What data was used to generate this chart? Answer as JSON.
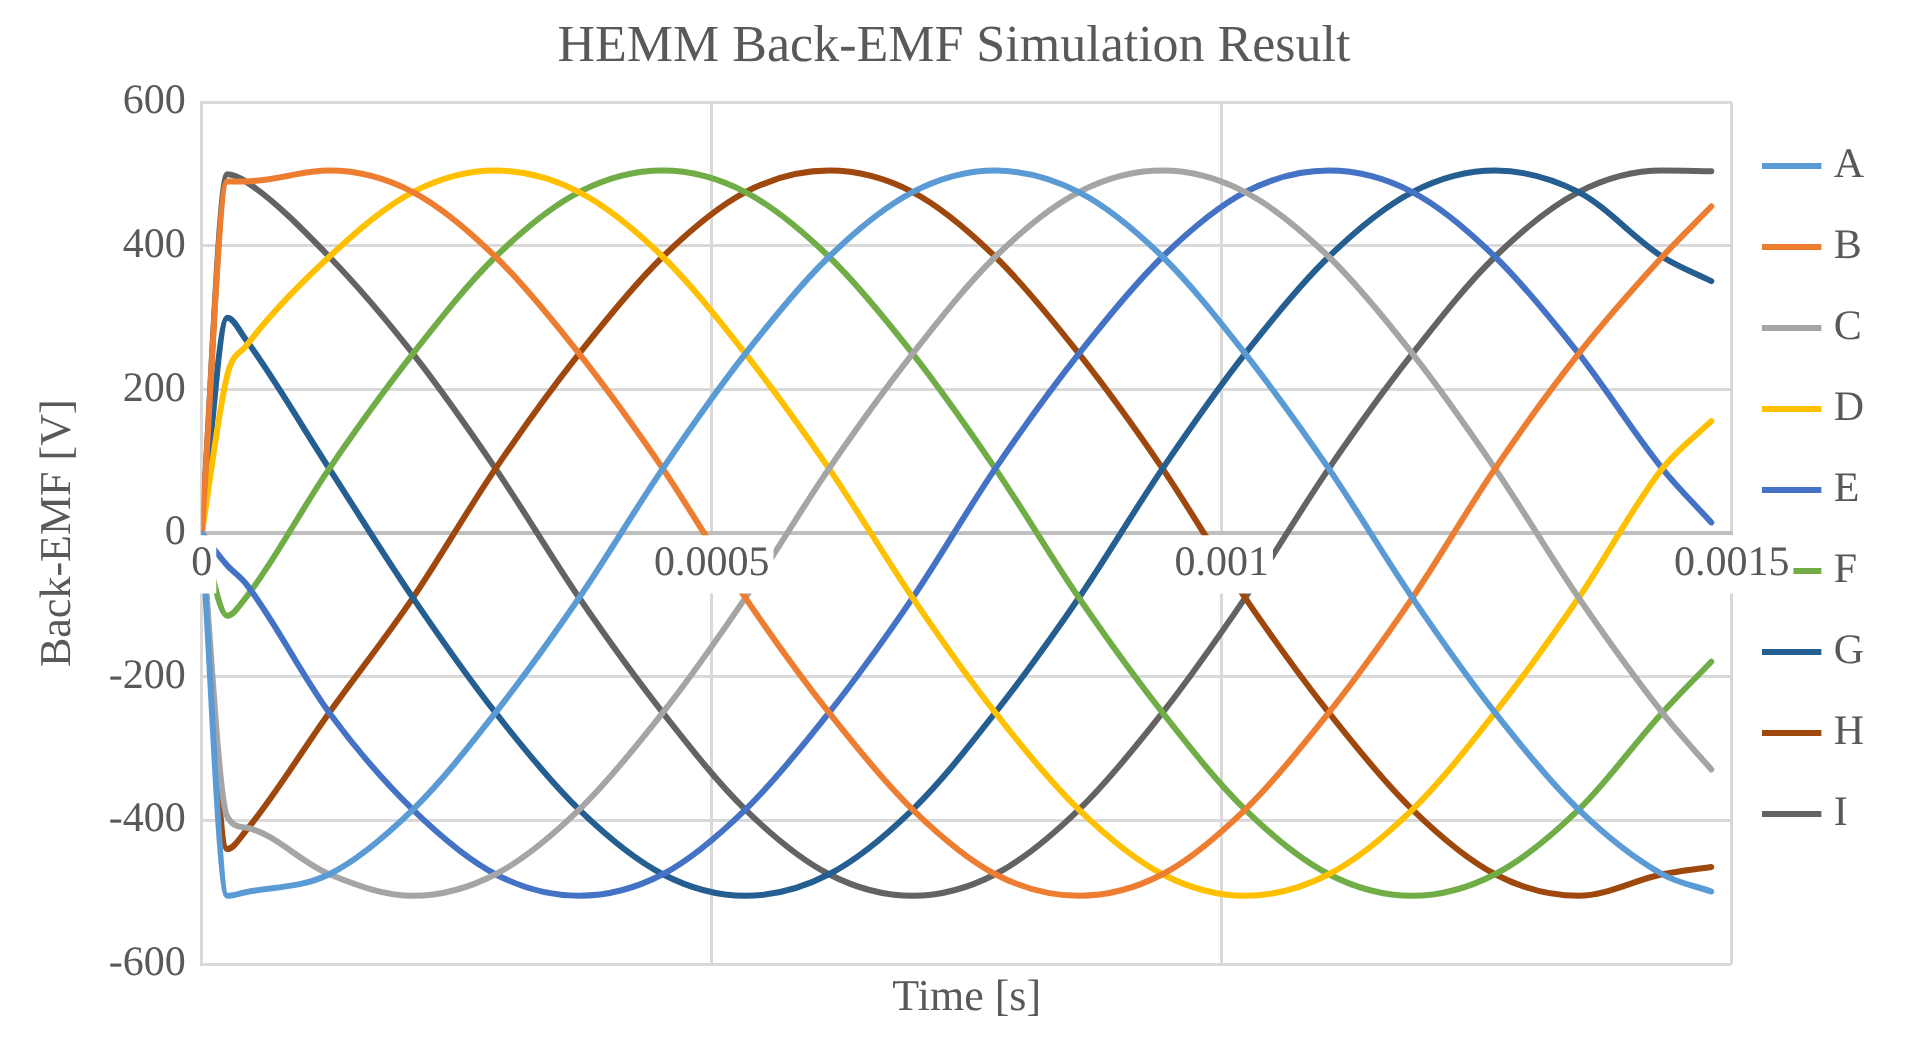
{
  "chart_data": {
    "type": "line",
    "title": "HEMM Back-EMF Simulation Result",
    "xlabel": "Time [s]",
    "ylabel": "Back-EMF [V]",
    "x": [
      0,
      2.5e-05,
      4.3e-05,
      0.000125,
      0.000207,
      0.000288,
      0.00037,
      0.000452,
      0.000533,
      0.000615,
      0.000697,
      0.000778,
      0.00086,
      0.000942,
      0.001023,
      0.001105,
      0.001187,
      0.001268,
      0.00135,
      0.001432,
      0.00148
    ],
    "series": [
      {
        "name": "A",
        "color": "#5b9bd5",
        "values": [
          0,
          -505,
          -500,
          -475,
          -385,
          -250,
          -90,
          90,
          250,
          385,
          475,
          505,
          475,
          385,
          250,
          90,
          -90,
          -250,
          -385,
          -475,
          -499
        ]
      },
      {
        "name": "B",
        "color": "#ed7d31",
        "values": [
          0,
          490,
          490,
          505,
          475,
          385,
          250,
          90,
          -90,
          -250,
          -385,
          -475,
          -505,
          -475,
          -385,
          -250,
          -90,
          90,
          250,
          385,
          455
        ]
      },
      {
        "name": "C",
        "color": "#a5a5a5",
        "values": [
          0,
          -395,
          -410,
          -475,
          -505,
          -475,
          -385,
          -250,
          -90,
          90,
          250,
          385,
          475,
          505,
          475,
          385,
          250,
          90,
          -90,
          -250,
          -329
        ]
      },
      {
        "name": "D",
        "color": "#ffc000",
        "values": [
          0,
          220,
          260,
          385,
          475,
          505,
          475,
          385,
          250,
          90,
          -90,
          -250,
          -385,
          -475,
          -505,
          -475,
          -385,
          -250,
          -90,
          90,
          156
        ]
      },
      {
        "name": "E",
        "color": "#4472c4",
        "values": [
          0,
          -45,
          -70,
          -250,
          -385,
          -475,
          -505,
          -475,
          -385,
          -250,
          -90,
          90,
          250,
          385,
          475,
          505,
          475,
          385,
          250,
          90,
          15
        ]
      },
      {
        "name": "F",
        "color": "#70ad47",
        "values": [
          0,
          -115,
          -90,
          90,
          250,
          385,
          475,
          505,
          475,
          385,
          250,
          90,
          -90,
          -250,
          -385,
          -475,
          -505,
          -475,
          -385,
          -250,
          -179
        ]
      },
      {
        "name": "G",
        "color": "#255e91",
        "values": [
          0,
          300,
          270,
          90,
          -90,
          -250,
          -385,
          -475,
          -505,
          -475,
          -385,
          -250,
          -90,
          90,
          250,
          385,
          475,
          505,
          475,
          385,
          351
        ]
      },
      {
        "name": "H",
        "color": "#9e480e",
        "values": [
          0,
          -440,
          -415,
          -250,
          -90,
          90,
          250,
          385,
          475,
          505,
          475,
          385,
          250,
          90,
          -90,
          -250,
          -385,
          -475,
          -505,
          -475,
          -465
        ]
      },
      {
        "name": "I",
        "color": "#636363",
        "values": [
          0,
          500,
          490,
          385,
          250,
          90,
          -90,
          -250,
          -385,
          -475,
          -505,
          -475,
          -385,
          -250,
          -90,
          90,
          250,
          385,
          475,
          505,
          504
        ]
      }
    ],
    "xlim": [
      0,
      0.0015
    ],
    "xticks": [
      0,
      0.0005,
      0.001,
      0.0015
    ],
    "ylim": [
      -600,
      600
    ],
    "yticks": [
      -600,
      -400,
      -200,
      0,
      200,
      400,
      600
    ],
    "grid": true,
    "legend": "right",
    "marker": "none",
    "line_style": "solid"
  }
}
